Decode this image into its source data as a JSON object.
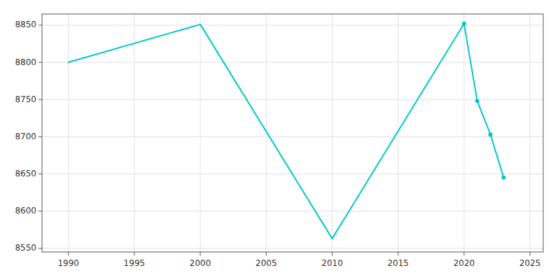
{
  "chart_data": {
    "type": "line",
    "x": [
      1990,
      2000,
      2010,
      2020,
      2021,
      2022,
      2023
    ],
    "series": [
      {
        "color": "#00C8C8",
        "marker": "none",
        "values": [
          8800,
          8851,
          8563,
          8852,
          null,
          null,
          null
        ]
      },
      {
        "color": "#00C8C8",
        "marker": "circle",
        "values": [
          null,
          null,
          null,
          8852,
          8748,
          8703,
          8645
        ]
      }
    ],
    "xlim": [
      1988,
      2026
    ],
    "ylim": [
      8545,
      8865
    ],
    "xticks": [
      1990,
      1995,
      2000,
      2005,
      2010,
      2015,
      2020,
      2025
    ],
    "yticks": [
      8550,
      8600,
      8650,
      8700,
      8750,
      8800,
      8850
    ],
    "grid": true
  }
}
